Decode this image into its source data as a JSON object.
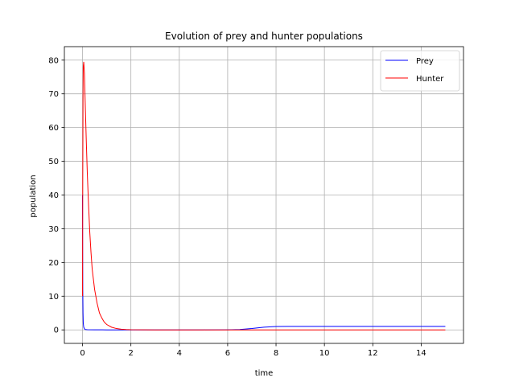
{
  "chart_data": {
    "type": "line",
    "title": "Evolution of prey and hunter populations",
    "xlabel": "time",
    "ylabel": "population",
    "xlim": [
      -0.75,
      15.75
    ],
    "ylim": [
      -4,
      84
    ],
    "xticks": [
      0,
      2,
      4,
      6,
      8,
      10,
      12,
      14
    ],
    "yticks": [
      0,
      10,
      20,
      30,
      40,
      50,
      60,
      70,
      80
    ],
    "grid": true,
    "legend_position": "top-right",
    "series": [
      {
        "name": "Prey",
        "color": "#0000ff",
        "x": [
          0,
          0.005,
          0.01,
          0.02,
          0.03,
          0.05,
          0.08,
          0.12,
          0.2,
          0.5,
          1,
          2,
          3,
          4,
          5,
          6,
          6.5,
          7,
          7.5,
          8,
          8.5,
          9,
          10,
          11,
          12,
          13,
          14,
          15
        ],
        "y": [
          40,
          25,
          12,
          5,
          2,
          0.8,
          0.3,
          0.1,
          0.05,
          0.02,
          0.01,
          0.01,
          0.01,
          0.01,
          0.01,
          0.02,
          0.1,
          0.4,
          0.8,
          1.0,
          1.05,
          1.05,
          1.05,
          1.05,
          1.05,
          1.05,
          1.05,
          1.05
        ]
      },
      {
        "name": "Hunter",
        "color": "#ff0000",
        "x": [
          0,
          0.01,
          0.02,
          0.03,
          0.05,
          0.08,
          0.12,
          0.16,
          0.2,
          0.25,
          0.3,
          0.35,
          0.4,
          0.5,
          0.6,
          0.7,
          0.8,
          0.9,
          1.0,
          1.2,
          1.4,
          1.6,
          1.8,
          2.0,
          2.5,
          3,
          4,
          5,
          6,
          7,
          8,
          9,
          10,
          11,
          12,
          13,
          14,
          15
        ],
        "y": [
          10,
          45,
          68,
          78,
          79.5,
          76,
          65,
          55,
          46,
          37,
          29,
          23,
          18,
          12,
          8,
          5,
          3.5,
          2.3,
          1.6,
          0.8,
          0.4,
          0.2,
          0.1,
          0.05,
          0.02,
          0.01,
          0.01,
          0.01,
          0.01,
          0.01,
          0.01,
          0.01,
          0.01,
          0.01,
          0.01,
          0.01,
          0.01,
          0.01
        ]
      }
    ]
  }
}
